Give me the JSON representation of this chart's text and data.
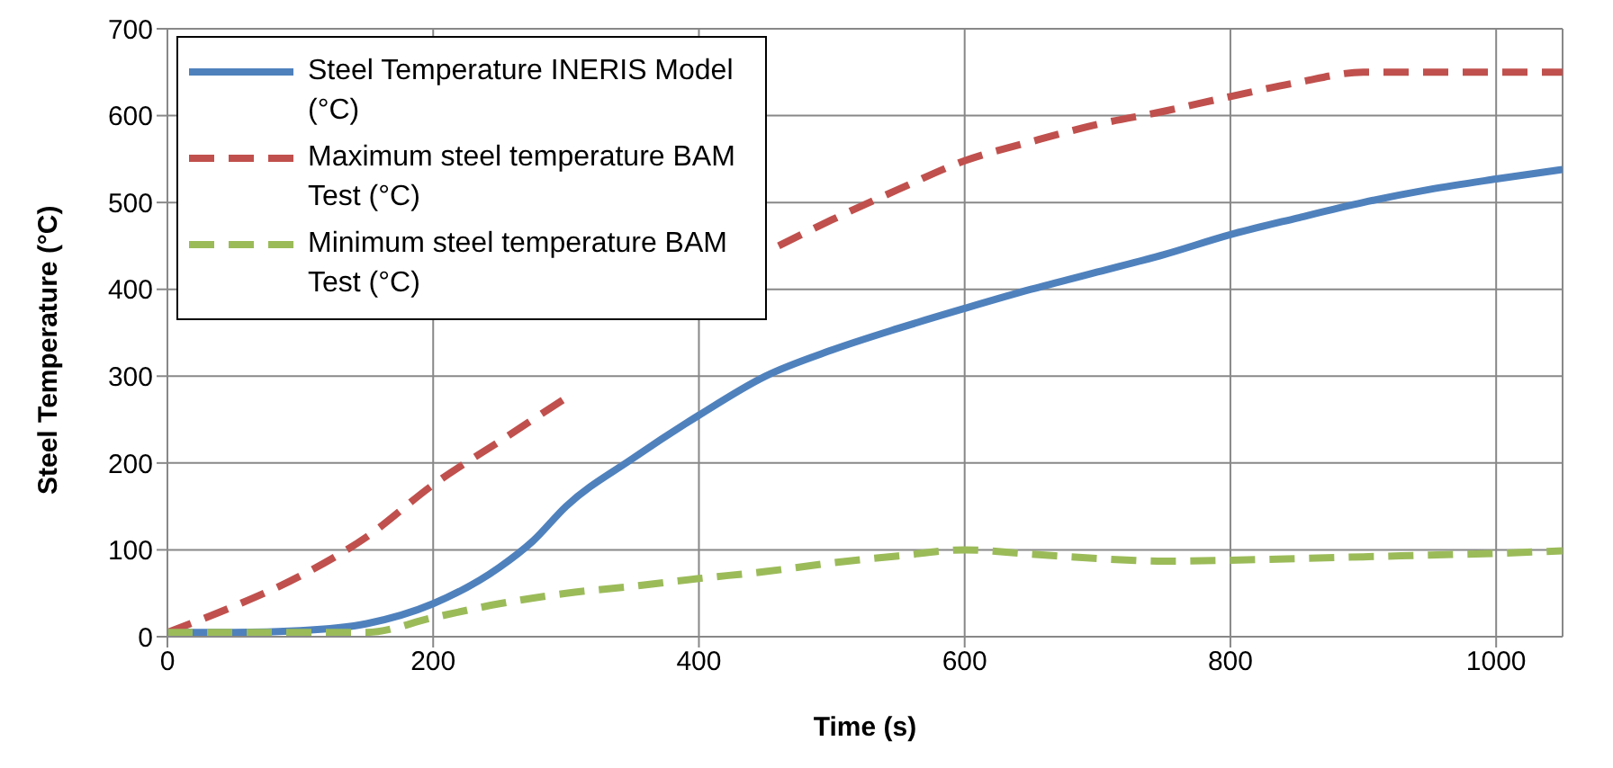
{
  "chart_data": {
    "type": "line",
    "xlabel": "Time (s)",
    "ylabel": "Steel Temperature (°C)",
    "xlim": [
      0,
      1050
    ],
    "xticks": [
      0,
      200,
      400,
      600,
      800,
      1000
    ],
    "ylim": [
      0,
      700
    ],
    "yticks": [
      0,
      100,
      200,
      300,
      400,
      500,
      600,
      700
    ],
    "grid": true,
    "legend": "top left",
    "series": [
      {
        "name": "Steel Temperature  INERIS Model (°C)",
        "color": "#4f81bd",
        "line_style": "solid",
        "x": [
          0,
          50,
          100,
          150,
          200,
          250,
          275,
          300,
          350,
          400,
          450,
          500,
          550,
          600,
          650,
          700,
          750,
          800,
          850,
          900,
          950,
          1000,
          1050
        ],
        "values": [
          5,
          5,
          7,
          15,
          38,
          80,
          110,
          150,
          205,
          255,
          300,
          330,
          355,
          378,
          400,
          420,
          440,
          463,
          482,
          500,
          515,
          527,
          538
        ]
      },
      {
        "name": "Maximum steel temperature BAM Test (°C)",
        "color": "#c0504d",
        "line_style": "dashed",
        "x": [
          0,
          50,
          100,
          150,
          200,
          250,
          300,
          350,
          400,
          460,
          500,
          550,
          600,
          650,
          700,
          750,
          800,
          850,
          900,
          950,
          1000,
          1050
        ],
        "values": [
          5,
          35,
          70,
          115,
          175,
          225,
          275,
          null,
          null,
          450,
          480,
          515,
          548,
          570,
          590,
          605,
          622,
          638,
          650,
          650,
          650,
          650
        ]
      },
      {
        "name": "Minimum steel temperature BAM Test (°C)",
        "color": "#9bbb59",
        "line_style": "dashed",
        "x": [
          0,
          50,
          100,
          150,
          200,
          250,
          300,
          350,
          400,
          450,
          500,
          550,
          600,
          650,
          700,
          750,
          800,
          850,
          900,
          950,
          1000,
          1050
        ],
        "values": [
          5,
          5,
          5,
          5,
          22,
          38,
          50,
          58,
          67,
          75,
          85,
          93,
          100,
          95,
          90,
          87,
          88,
          90,
          92,
          94,
          96,
          99
        ]
      }
    ]
  }
}
